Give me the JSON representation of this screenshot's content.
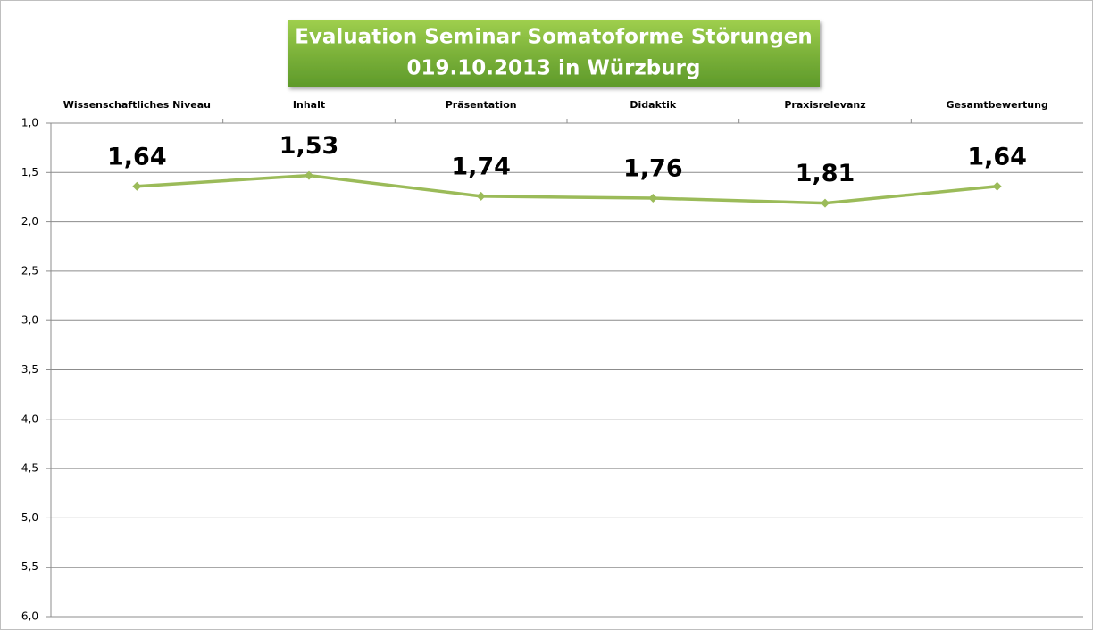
{
  "chart_data": {
    "type": "line",
    "title": [
      "Evaluation Seminar Somatoforme Störungen",
      "019.10.2013 in Würzburg"
    ],
    "categories": [
      "Wissenschaftliches Niveau",
      "Inhalt",
      "Präsentation",
      "Didaktik",
      "Praxisrelevanz",
      "Gesamtbewertung"
    ],
    "series": [
      {
        "color": "#9bbb59",
        "values": [
          1.64,
          1.53,
          1.74,
          1.76,
          1.81,
          1.64
        ],
        "value_labels": [
          "1,64",
          "1,53",
          "1,74",
          "1,76",
          "1,81",
          "1,64"
        ]
      }
    ],
    "ylim": [
      1,
      6
    ],
    "y_inverted": true,
    "yticks": [
      {
        "value": 1,
        "label": "1,0"
      },
      {
        "value": 1.5,
        "label": "1,5"
      },
      {
        "value": 2,
        "label": "2,0"
      },
      {
        "value": 2.5,
        "label": "2,5"
      },
      {
        "value": 3,
        "label": "3,0"
      },
      {
        "value": 3.5,
        "label": "3,5"
      },
      {
        "value": 4,
        "label": "4,0"
      },
      {
        "value": 4.5,
        "label": "4,5"
      },
      {
        "value": 5,
        "label": "5,0"
      },
      {
        "value": 5.5,
        "label": "5,5"
      },
      {
        "value": 6,
        "label": "6,0"
      }
    ],
    "grid": true
  }
}
